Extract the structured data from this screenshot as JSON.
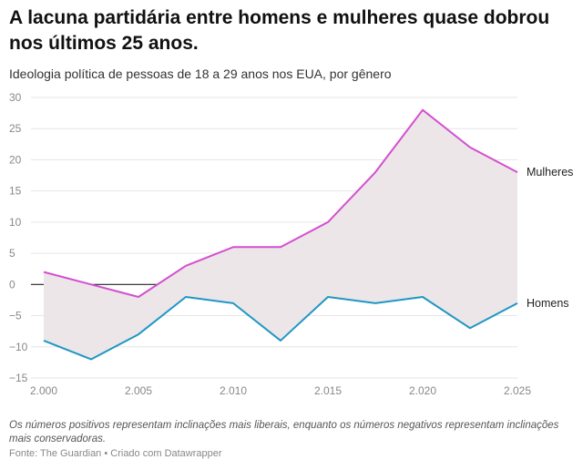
{
  "title": "A lacuna partidária entre homens e mulheres quase dobrou nos últimos 25 anos.",
  "subtitle": "Ideologia política de pessoas de 18 a 29 anos nos EUA, por gênero",
  "note": "Os números positivos representam inclinações mais liberais, enquanto os números negativos representam inclinações mais conservadoras.",
  "source": "Fonte: The Guardian • Criado com Datawrapper",
  "colors": {
    "mulheres": "#d44fd0",
    "homens": "#1f97c4",
    "gap_fill": "#ece6e8",
    "grid": "#e6e6e6",
    "zero": "#222222"
  },
  "chart_data": {
    "type": "line",
    "x": [
      2000,
      2002.5,
      2005,
      2007.5,
      2010,
      2012.5,
      2015,
      2017.5,
      2020,
      2022.5,
      2025
    ],
    "series": [
      {
        "name": "Mulheres",
        "values": [
          2,
          0,
          -2,
          3,
          6,
          6,
          10,
          18,
          28,
          22,
          18
        ]
      },
      {
        "name": "Homens",
        "values": [
          -9,
          -12,
          -8,
          -2,
          -3,
          -9,
          -2,
          -3,
          -2,
          -7,
          -3
        ]
      }
    ],
    "xticks": [
      "2.000",
      "2.005",
      "2.010",
      "2.015",
      "2.020",
      "2.025"
    ],
    "xtick_values": [
      2000,
      2005,
      2010,
      2015,
      2020,
      2025
    ],
    "yticks": [
      30,
      25,
      20,
      15,
      10,
      5,
      0,
      -5,
      -10,
      -15
    ],
    "yticks_labels": [
      "30",
      "25",
      "20",
      "15",
      "10",
      "5",
      "0",
      "−5",
      "−10",
      "−15"
    ],
    "xlim": [
      2000,
      2025
    ],
    "ylim": [
      -15,
      30
    ],
    "xlabel": "",
    "ylabel": "",
    "grid": true,
    "shaded_gap": true
  }
}
